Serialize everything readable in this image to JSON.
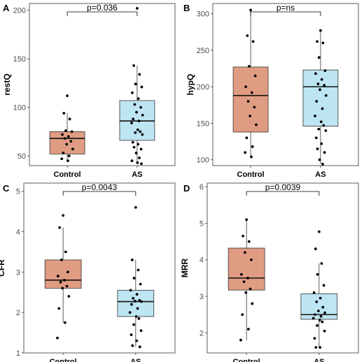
{
  "chart_data": [
    {
      "panel": "A",
      "type": "box",
      "ylabel": "restQ",
      "categories": [
        "Control",
        "AS"
      ],
      "yticks": [
        50,
        100,
        150,
        200
      ],
      "ylim": [
        40,
        207
      ],
      "box_colors": [
        "#e09c82",
        "#bde5f2"
      ],
      "pvalue": "p=0.036",
      "boxes": [
        {
          "q1": 52,
          "median": 68,
          "q3": 75,
          "whisker_low": 45,
          "whisker_high": 94
        },
        {
          "q1": 66,
          "median": 86,
          "q3": 107,
          "whisker_low": 42,
          "whisker_high": 143
        }
      ],
      "points": [
        [
          112,
          94,
          88,
          76,
          75,
          72,
          70,
          68,
          65,
          62,
          57,
          53,
          50,
          47,
          45
        ],
        [
          202,
          143,
          134,
          124,
          121,
          115,
          109,
          103,
          100,
          95,
          92,
          88,
          86,
          84,
          77,
          75,
          74,
          72,
          64,
          62,
          59,
          57,
          53,
          48,
          45,
          43,
          42
        ]
      ]
    },
    {
      "panel": "B",
      "type": "box",
      "ylabel": "hypQ",
      "categories": [
        "Control",
        "AS"
      ],
      "yticks": [
        100,
        150,
        200,
        250,
        300
      ],
      "ylim": [
        92,
        314
      ],
      "box_colors": [
        "#e09c82",
        "#bde5f2"
      ],
      "pvalue": "p=ns",
      "boxes": [
        {
          "q1": 138,
          "median": 188,
          "q3": 227,
          "whisker_low": 104,
          "whisker_high": 305
        },
        {
          "q1": 146,
          "median": 200,
          "q3": 223,
          "whisker_low": 94,
          "whisker_high": 277
        }
      ],
      "points": [
        [
          305,
          270,
          262,
          228,
          215,
          200,
          192,
          180,
          172,
          160,
          148,
          130,
          118,
          110,
          104
        ],
        [
          277,
          262,
          260,
          240,
          222,
          218,
          210,
          204,
          202,
          196,
          188,
          180,
          170,
          160,
          152,
          147,
          142,
          140,
          130,
          122,
          115,
          110,
          100,
          94
        ]
      ]
    },
    {
      "panel": "C",
      "type": "box",
      "ylabel": "CFR",
      "categories": [
        "Control",
        "AS"
      ],
      "yticks": [
        1,
        2,
        3,
        4,
        5
      ],
      "ylim": [
        1,
        5.2
      ],
      "box_colors": [
        "#e09c82",
        "#bde5f2"
      ],
      "pvalue": "p=0.0043",
      "boxes": [
        {
          "q1": 2.6,
          "median": 2.8,
          "q3": 3.3,
          "whisker_low": 1.75,
          "whisker_high": 4.1
        },
        {
          "q1": 1.9,
          "median": 2.27,
          "q3": 2.55,
          "whisker_low": 1.15,
          "whisker_high": 3.3
        }
      ],
      "points": [
        [
          4.4,
          4.1,
          3.5,
          3.3,
          3.0,
          2.9,
          2.8,
          2.75,
          2.65,
          2.6,
          2.4,
          2.1,
          1.75,
          1.37
        ],
        [
          4.6,
          3.3,
          3.05,
          2.85,
          2.7,
          2.55,
          2.45,
          2.35,
          2.3,
          2.28,
          2.27,
          2.2,
          2.1,
          2.0,
          1.9,
          1.85,
          1.7,
          1.55,
          1.45,
          1.3,
          1.18,
          1.15
        ]
      ]
    },
    {
      "panel": "D",
      "type": "box",
      "ylabel": "MRR",
      "categories": [
        "Control",
        "AS"
      ],
      "yticks": [
        2,
        3,
        4,
        5,
        6
      ],
      "ylim": [
        1.45,
        6.1
      ],
      "box_colors": [
        "#e09c82",
        "#bde5f2"
      ],
      "pvalue": "p=0.0039",
      "boxes": [
        {
          "q1": 3.17,
          "median": 3.5,
          "q3": 4.32,
          "whisker_low": 1.8,
          "whisker_high": 5.1
        },
        {
          "q1": 2.37,
          "median": 2.5,
          "q3": 3.07,
          "whisker_low": 1.6,
          "whisker_high": 3.9
        }
      ],
      "points": [
        [
          5.1,
          4.65,
          4.5,
          4.2,
          4.0,
          3.6,
          3.5,
          3.4,
          3.2,
          3.1,
          2.8,
          2.5,
          2.1,
          1.8
        ],
        [
          4.77,
          4.3,
          3.9,
          3.6,
          3.3,
          3.1,
          2.95,
          2.85,
          2.7,
          2.6,
          2.55,
          2.5,
          2.45,
          2.4,
          2.35,
          2.3,
          2.2,
          2.05,
          1.85,
          1.6,
          1.6
        ]
      ]
    }
  ]
}
